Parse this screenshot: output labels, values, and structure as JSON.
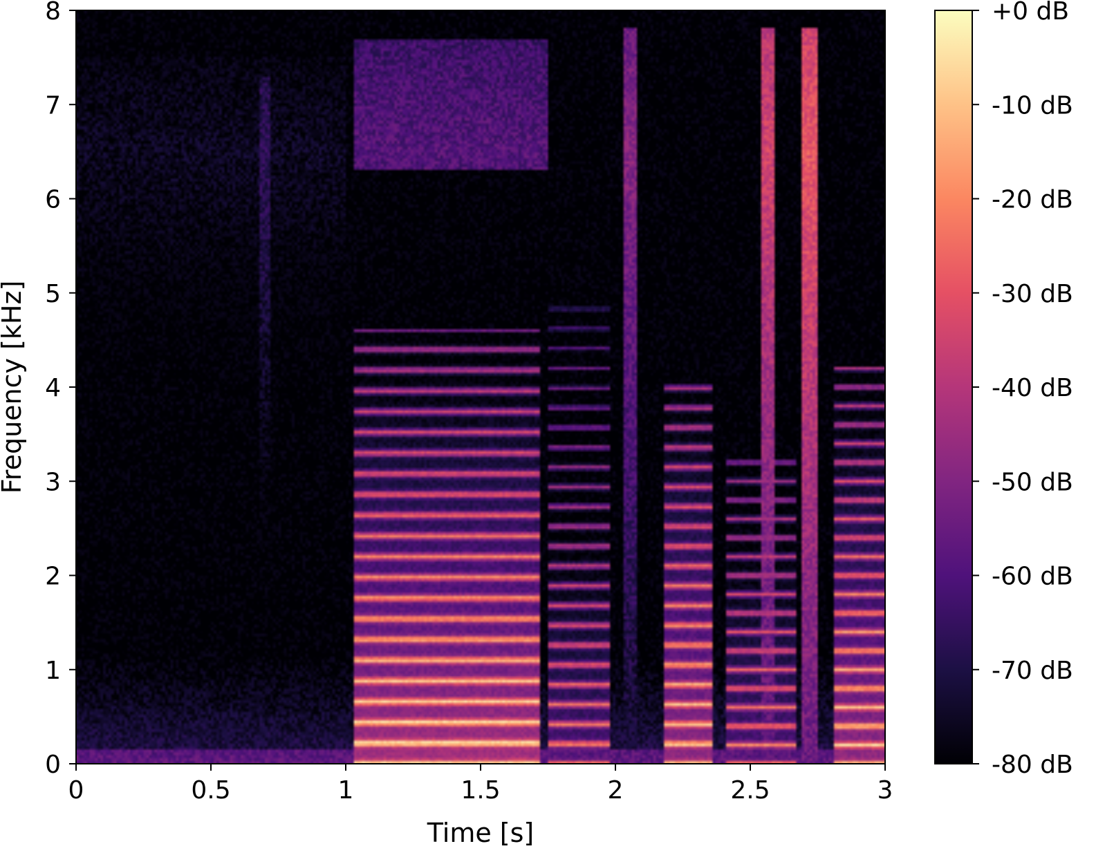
{
  "chart_data": {
    "type": "heatmap",
    "subtype": "spectrogram",
    "title": "",
    "xlabel": "Time [s]",
    "ylabel": "Frequency [kHz]",
    "xlim": [
      0,
      3
    ],
    "ylim": [
      0,
      8
    ],
    "x_ticks": [
      0,
      0.5,
      1,
      1.5,
      2,
      2.5,
      3
    ],
    "x_tick_labels": [
      "0",
      "0.5",
      "1",
      "1.5",
      "2",
      "2.5",
      "3"
    ],
    "y_ticks": [
      0,
      1,
      2,
      3,
      4,
      5,
      6,
      7,
      8
    ],
    "y_tick_labels": [
      "0",
      "1",
      "2",
      "3",
      "4",
      "5",
      "6",
      "7",
      "8"
    ],
    "colormap": "magma",
    "colorbar": {
      "range": [
        -80,
        0
      ],
      "ticks": [
        0,
        -10,
        -20,
        -30,
        -40,
        -50,
        -60,
        -70,
        -80
      ],
      "tick_labels": [
        "+0 dB",
        "-10 dB",
        "-20 dB",
        "-30 dB",
        "-40 dB",
        "-50 dB",
        "-60 dB",
        "-70 dB",
        "-80 dB"
      ]
    },
    "grid": false,
    "segments": [
      {
        "t_start": 0.0,
        "t_end": 1.0,
        "level_db": -72,
        "character": "background noise",
        "freq_top_khz": 7.5
      },
      {
        "t_start": 0.68,
        "t_end": 0.72,
        "level_db": -62,
        "character": "faint broadband",
        "freq_top_khz": 7.3
      },
      {
        "t_start": 1.03,
        "t_end": 1.72,
        "level_db": -8,
        "character": "voiced harmonics",
        "f0_khz": 0.22,
        "freq_top_khz": 4.6
      },
      {
        "t_start": 1.03,
        "t_end": 1.75,
        "level_db": -55,
        "character": "high band",
        "freq_low_khz": 6.3,
        "freq_top_khz": 7.7
      },
      {
        "t_start": 1.75,
        "t_end": 1.98,
        "level_db": -25,
        "character": "voiced harmonics",
        "f0_khz": 0.21,
        "freq_top_khz": 4.9
      },
      {
        "t_start": 2.03,
        "t_end": 2.08,
        "level_db": -45,
        "character": "fricative",
        "freq_top_khz": 7.8
      },
      {
        "t_start": 2.18,
        "t_end": 2.36,
        "level_db": -12,
        "character": "voiced harmonics",
        "f0_khz": 0.21,
        "freq_top_khz": 4.1
      },
      {
        "t_start": 2.41,
        "t_end": 2.67,
        "level_db": -25,
        "character": "voiced harmonics",
        "f0_khz": 0.2,
        "freq_top_khz": 3.3
      },
      {
        "t_start": 2.54,
        "t_end": 2.59,
        "level_db": -30,
        "character": "fricative",
        "freq_top_khz": 7.8
      },
      {
        "t_start": 2.69,
        "t_end": 2.75,
        "level_db": -25,
        "character": "fricative",
        "freq_top_khz": 7.8
      },
      {
        "t_start": 2.81,
        "t_end": 3.0,
        "level_db": -12,
        "character": "voiced harmonics",
        "f0_khz": 0.2,
        "freq_top_khz": 4.2
      }
    ]
  }
}
